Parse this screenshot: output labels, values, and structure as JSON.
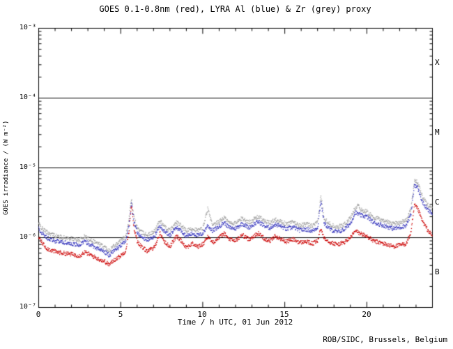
{
  "footer": {
    "credit": "ROB/SIDC, Brussels, Belgium"
  },
  "chart_data": {
    "type": "scatter",
    "title": "GOES 0.1-0.8nm (red), LYRA Al (blue) & Zr (grey) proxy",
    "xlabel": "Time / h UTC, 01 Jun 2012",
    "ylabel": "GOES irradiance / (W m⁻²)",
    "xlim": [
      0,
      24
    ],
    "ylog": true,
    "ylim_exp": [
      -7,
      -3
    ],
    "x_ticks": [
      0,
      5,
      10,
      15,
      20
    ],
    "y_tick_labels": [
      "10⁻³",
      "10⁻⁴",
      "10⁻⁵",
      "10⁻⁶",
      "10⁻⁷"
    ],
    "hlines_exp": [
      -4,
      -5,
      -6
    ],
    "grid": false,
    "legend_position": "in-title",
    "flare_classes": [
      {
        "label": "X",
        "between_exp": [
          -4,
          -3
        ]
      },
      {
        "label": "M",
        "between_exp": [
          -5,
          -4
        ]
      },
      {
        "label": "C",
        "between_exp": [
          -6,
          -5
        ]
      },
      {
        "label": "B",
        "between_exp": [
          -7,
          -6
        ]
      }
    ],
    "series": [
      {
        "name": "GOES 0.1-0.8nm",
        "color": "#cc0000",
        "points": [
          [
            0,
            1e-06
          ],
          [
            0.2,
            8.5e-07
          ],
          [
            0.5,
            7e-07
          ],
          [
            1.0,
            6.3e-07
          ],
          [
            1.5,
            6e-07
          ],
          [
            2.0,
            5.8e-07
          ],
          [
            2.5,
            5.5e-07
          ],
          [
            2.8,
            6.2e-07
          ],
          [
            3.2,
            5.6e-07
          ],
          [
            3.6,
            5e-07
          ],
          [
            4.0,
            4.6e-07
          ],
          [
            4.3,
            4.1e-07
          ],
          [
            4.6,
            4.8e-07
          ],
          [
            5.0,
            5.5e-07
          ],
          [
            5.3,
            6.5e-07
          ],
          [
            5.5,
            1.2e-06
          ],
          [
            5.65,
            2.9e-06
          ],
          [
            5.8,
            1.4e-06
          ],
          [
            6.0,
            9e-07
          ],
          [
            6.3,
            7.2e-07
          ],
          [
            6.6,
            6.5e-07
          ],
          [
            7.0,
            7e-07
          ],
          [
            7.4,
            1.15e-06
          ],
          [
            7.7,
            8.5e-07
          ],
          [
            8.0,
            7.5e-07
          ],
          [
            8.4,
            1.05e-06
          ],
          [
            8.7,
            9e-07
          ],
          [
            9.0,
            7.3e-07
          ],
          [
            9.4,
            8.2e-07
          ],
          [
            9.7,
            7.4e-07
          ],
          [
            10.0,
            8e-07
          ],
          [
            10.3,
            1.05e-06
          ],
          [
            10.6,
            8.5e-07
          ],
          [
            11.0,
            1e-06
          ],
          [
            11.3,
            1.15e-06
          ],
          [
            11.6,
            9.5e-07
          ],
          [
            12.0,
            9e-07
          ],
          [
            12.4,
            1.1e-06
          ],
          [
            12.8,
            9.5e-07
          ],
          [
            13.1,
            1.05e-06
          ],
          [
            13.4,
            1.15e-06
          ],
          [
            13.8,
            9.5e-07
          ],
          [
            14.1,
            9e-07
          ],
          [
            14.4,
            1.05e-06
          ],
          [
            14.8,
            9.5e-07
          ],
          [
            15.1,
            8.8e-07
          ],
          [
            15.5,
            9.5e-07
          ],
          [
            15.9,
            8.5e-07
          ],
          [
            16.3,
            8.8e-07
          ],
          [
            16.7,
            8.2e-07
          ],
          [
            17.0,
            9e-07
          ],
          [
            17.2,
            1.35e-06
          ],
          [
            17.4,
            1e-06
          ],
          [
            17.8,
            8.5e-07
          ],
          [
            18.2,
            8e-07
          ],
          [
            18.6,
            8.5e-07
          ],
          [
            19.0,
            1e-06
          ],
          [
            19.3,
            1.25e-06
          ],
          [
            19.6,
            1.15e-06
          ],
          [
            20.0,
            1.05e-06
          ],
          [
            20.4,
            9e-07
          ],
          [
            20.8,
            8.5e-07
          ],
          [
            21.2,
            8e-07
          ],
          [
            21.6,
            7.5e-07
          ],
          [
            22.0,
            7.8e-07
          ],
          [
            22.4,
            8.2e-07
          ],
          [
            22.7,
            1.2e-06
          ],
          [
            22.9,
            2.9e-06
          ],
          [
            23.1,
            2.6e-06
          ],
          [
            23.4,
            1.7e-06
          ],
          [
            23.7,
            1.3e-06
          ],
          [
            24,
            1.05e-06
          ]
        ]
      },
      {
        "name": "LYRA Al proxy",
        "color": "#3333bb",
        "points": [
          [
            0,
            1.35e-06
          ],
          [
            0.2,
            1.15e-06
          ],
          [
            0.5,
            1e-06
          ],
          [
            1.0,
            9e-07
          ],
          [
            1.5,
            8.6e-07
          ],
          [
            2.0,
            8.2e-07
          ],
          [
            2.5,
            7.8e-07
          ],
          [
            2.8,
            8.8e-07
          ],
          [
            3.2,
            7.9e-07
          ],
          [
            3.6,
            7e-07
          ],
          [
            4.0,
            6.3e-07
          ],
          [
            4.3,
            5.6e-07
          ],
          [
            4.6,
            6.6e-07
          ],
          [
            5.0,
            7.6e-07
          ],
          [
            5.3,
            9e-07
          ],
          [
            5.5,
            1.5e-06
          ],
          [
            5.65,
            3.1e-06
          ],
          [
            5.8,
            1.7e-06
          ],
          [
            6.0,
            1.2e-06
          ],
          [
            6.3,
            1e-06
          ],
          [
            6.6,
            9.3e-07
          ],
          [
            7.0,
            1e-06
          ],
          [
            7.4,
            1.5e-06
          ],
          [
            7.7,
            1.2e-06
          ],
          [
            8.0,
            1.08e-06
          ],
          [
            8.4,
            1.4e-06
          ],
          [
            8.7,
            1.25e-06
          ],
          [
            9.0,
            1.05e-06
          ],
          [
            9.4,
            1.15e-06
          ],
          [
            9.7,
            1.07e-06
          ],
          [
            10.0,
            1.15e-06
          ],
          [
            10.3,
            1.5e-06
          ],
          [
            10.6,
            1.25e-06
          ],
          [
            11.0,
            1.45e-06
          ],
          [
            11.3,
            1.65e-06
          ],
          [
            11.6,
            1.4e-06
          ],
          [
            12.0,
            1.35e-06
          ],
          [
            12.4,
            1.6e-06
          ],
          [
            12.8,
            1.4e-06
          ],
          [
            13.1,
            1.55e-06
          ],
          [
            13.4,
            1.7e-06
          ],
          [
            13.8,
            1.45e-06
          ],
          [
            14.1,
            1.38e-06
          ],
          [
            14.4,
            1.55e-06
          ],
          [
            14.8,
            1.45e-06
          ],
          [
            15.1,
            1.32e-06
          ],
          [
            15.5,
            1.42e-06
          ],
          [
            15.9,
            1.28e-06
          ],
          [
            16.3,
            1.32e-06
          ],
          [
            16.7,
            1.25e-06
          ],
          [
            17.0,
            1.4e-06
          ],
          [
            17.2,
            3.4e-06
          ],
          [
            17.4,
            1.6e-06
          ],
          [
            17.8,
            1.3e-06
          ],
          [
            18.2,
            1.2e-06
          ],
          [
            18.6,
            1.3e-06
          ],
          [
            19.0,
            1.6e-06
          ],
          [
            19.3,
            2.3e-06
          ],
          [
            19.6,
            2.1e-06
          ],
          [
            20.0,
            2e-06
          ],
          [
            20.4,
            1.65e-06
          ],
          [
            20.8,
            1.55e-06
          ],
          [
            21.2,
            1.45e-06
          ],
          [
            21.6,
            1.35e-06
          ],
          [
            22.0,
            1.4e-06
          ],
          [
            22.4,
            1.5e-06
          ],
          [
            22.7,
            2.2e-06
          ],
          [
            22.9,
            5.8e-06
          ],
          [
            23.1,
            5.2e-06
          ],
          [
            23.4,
            3.2e-06
          ],
          [
            23.7,
            2.5e-06
          ],
          [
            24,
            2.2e-06
          ]
        ]
      },
      {
        "name": "LYRA Zr proxy",
        "color": "#a0a0a0",
        "points": [
          [
            0,
            1.6e-06
          ],
          [
            0.2,
            1.35e-06
          ],
          [
            0.5,
            1.2e-06
          ],
          [
            1.0,
            1.07e-06
          ],
          [
            1.5,
            1e-06
          ],
          [
            2.0,
            9.7e-07
          ],
          [
            2.5,
            9.2e-07
          ],
          [
            2.8,
            1.04e-06
          ],
          [
            3.2,
            9.3e-07
          ],
          [
            3.6,
            8.3e-07
          ],
          [
            4.0,
            7.4e-07
          ],
          [
            4.3,
            6.6e-07
          ],
          [
            4.6,
            7.8e-07
          ],
          [
            5.0,
            9e-07
          ],
          [
            5.3,
            1.06e-06
          ],
          [
            5.5,
            1.8e-06
          ],
          [
            5.65,
            3.6e-06
          ],
          [
            5.8,
            2e-06
          ],
          [
            6.0,
            1.4e-06
          ],
          [
            6.3,
            1.18e-06
          ],
          [
            6.6,
            1.1e-06
          ],
          [
            7.0,
            1.18e-06
          ],
          [
            7.4,
            1.75e-06
          ],
          [
            7.7,
            1.4e-06
          ],
          [
            8.0,
            1.27e-06
          ],
          [
            8.4,
            1.65e-06
          ],
          [
            8.7,
            1.47e-06
          ],
          [
            9.0,
            1.24e-06
          ],
          [
            9.4,
            1.36e-06
          ],
          [
            9.7,
            1.26e-06
          ],
          [
            10.0,
            1.36e-06
          ],
          [
            10.3,
            2.6e-06
          ],
          [
            10.6,
            1.47e-06
          ],
          [
            11.0,
            1.7e-06
          ],
          [
            11.3,
            1.95e-06
          ],
          [
            11.6,
            1.65e-06
          ],
          [
            12.0,
            1.6e-06
          ],
          [
            12.4,
            1.9e-06
          ],
          [
            12.8,
            1.65e-06
          ],
          [
            13.1,
            1.83e-06
          ],
          [
            13.4,
            2e-06
          ],
          [
            13.8,
            1.7e-06
          ],
          [
            14.1,
            1.63e-06
          ],
          [
            14.4,
            1.83e-06
          ],
          [
            14.8,
            1.7e-06
          ],
          [
            15.1,
            1.56e-06
          ],
          [
            15.5,
            1.68e-06
          ],
          [
            15.9,
            1.5e-06
          ],
          [
            16.3,
            1.56e-06
          ],
          [
            16.7,
            1.47e-06
          ],
          [
            17.0,
            1.65e-06
          ],
          [
            17.2,
            4e-06
          ],
          [
            17.4,
            1.9e-06
          ],
          [
            17.8,
            1.53e-06
          ],
          [
            18.2,
            1.42e-06
          ],
          [
            18.6,
            1.53e-06
          ],
          [
            19.0,
            1.9e-06
          ],
          [
            19.3,
            2.7e-06
          ],
          [
            19.5,
            3e-06
          ],
          [
            19.6,
            2.5e-06
          ],
          [
            20.0,
            2.36e-06
          ],
          [
            20.4,
            1.95e-06
          ],
          [
            20.8,
            1.83e-06
          ],
          [
            21.2,
            1.7e-06
          ],
          [
            21.6,
            1.6e-06
          ],
          [
            22.0,
            1.65e-06
          ],
          [
            22.4,
            1.77e-06
          ],
          [
            22.7,
            2.6e-06
          ],
          [
            22.9,
            6.8e-06
          ],
          [
            23.1,
            6.1e-06
          ],
          [
            23.4,
            3.8e-06
          ],
          [
            23.7,
            2.95e-06
          ],
          [
            24,
            2.6e-06
          ]
        ]
      }
    ]
  }
}
